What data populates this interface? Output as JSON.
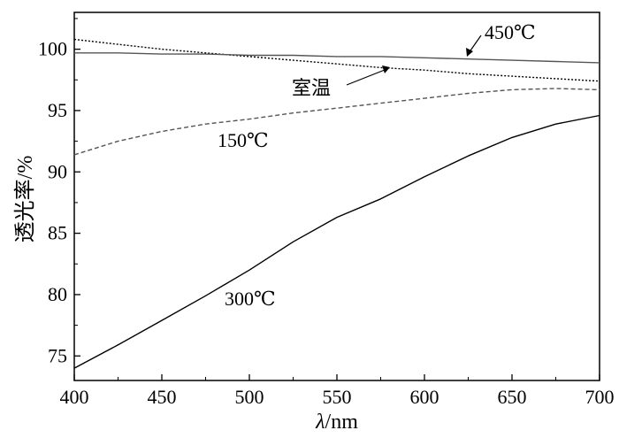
{
  "chart_data": {
    "type": "line",
    "xlabel_italic": "λ",
    "xlabel_rest": "/nm",
    "ylabel": "透光率/%",
    "xlim": [
      400,
      700
    ],
    "ylim": [
      73,
      103
    ],
    "x_ticks": [
      400,
      450,
      500,
      550,
      600,
      650,
      700
    ],
    "y_ticks": [
      75,
      80,
      85,
      90,
      95,
      100
    ],
    "grid": false,
    "annotations": {
      "room": "室温",
      "t150": "150℃",
      "t300": "300℃",
      "t450": "450℃"
    },
    "series": [
      {
        "label_key": "room",
        "style": "dotted",
        "color": "#000000",
        "x": [
          400,
          425,
          450,
          475,
          500,
          525,
          550,
          575,
          600,
          625,
          650,
          675,
          700
        ],
        "values": [
          100.8,
          100.4,
          100.0,
          99.7,
          99.4,
          99.1,
          98.8,
          98.5,
          98.3,
          98.0,
          97.8,
          97.6,
          97.4
        ]
      },
      {
        "label_key": "t450",
        "style": "solid",
        "color": "#555555",
        "x": [
          400,
          425,
          450,
          475,
          500,
          525,
          550,
          575,
          600,
          625,
          650,
          675,
          700
        ],
        "values": [
          99.7,
          99.7,
          99.6,
          99.6,
          99.5,
          99.5,
          99.4,
          99.4,
          99.3,
          99.2,
          99.1,
          99.0,
          98.9
        ]
      },
      {
        "label_key": "t150",
        "style": "dashed",
        "color": "#555555",
        "x": [
          400,
          425,
          450,
          475,
          500,
          525,
          550,
          575,
          600,
          625,
          650,
          675,
          700
        ],
        "values": [
          91.4,
          92.5,
          93.3,
          93.9,
          94.3,
          94.8,
          95.2,
          95.6,
          96.0,
          96.4,
          96.7,
          96.8,
          96.7
        ]
      },
      {
        "label_key": "t300",
        "style": "solid",
        "color": "#000000",
        "x": [
          400,
          425,
          450,
          475,
          500,
          525,
          550,
          575,
          600,
          625,
          650,
          675,
          700
        ],
        "values": [
          74.0,
          75.9,
          77.9,
          79.9,
          82.0,
          84.3,
          86.3,
          87.8,
          89.6,
          91.3,
          92.8,
          93.9,
          94.6
        ]
      }
    ]
  }
}
